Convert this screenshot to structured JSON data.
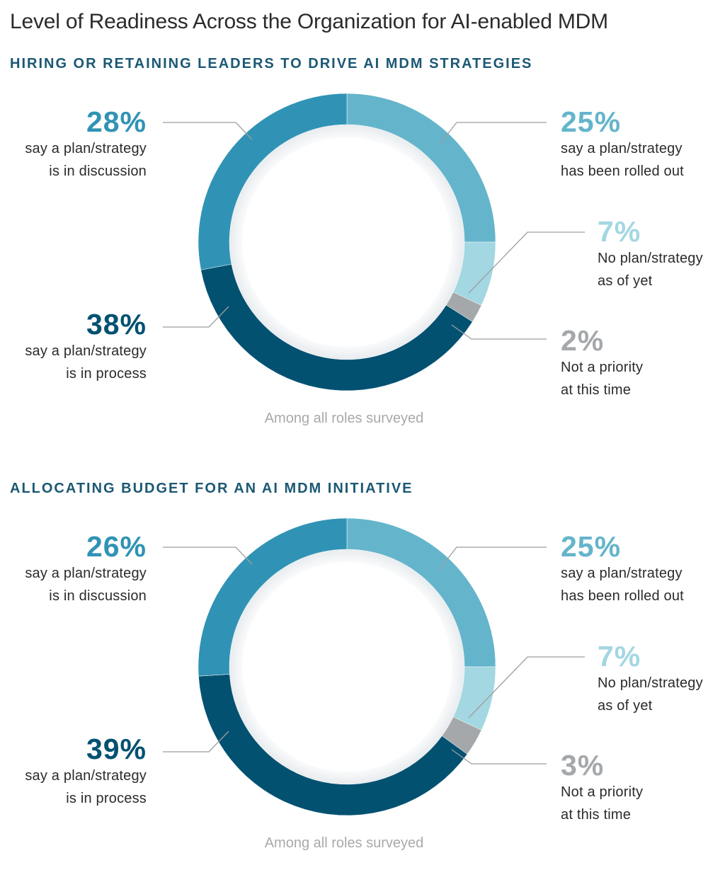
{
  "title": "Level of Readiness Across the Organization for AI-enabled MDM",
  "colors": {
    "discussion": "#3093b5",
    "rolled_out": "#64b5cb",
    "no_plan": "#a3d7e2",
    "not_priority": "#a5a8ab",
    "in_process": "#035171",
    "title": "#1b5874",
    "leader_line": "#9e9e9e"
  },
  "chart_data": [
    {
      "type": "pie",
      "title": "HIRING OR RETAINING LEADERS TO DRIVE AI MDM STRATEGIES",
      "footnote": "Among all roles surveyed",
      "slices": [
        {
          "key": "rolled_out",
          "value": 25,
          "label": "25%",
          "line1": "say a plan/strategy",
          "line2": "has been rolled out"
        },
        {
          "key": "no_plan",
          "value": 7,
          "label": "7%",
          "line1": "No plan/strategy",
          "line2": "as of yet"
        },
        {
          "key": "not_priority",
          "value": 2,
          "label": "2%",
          "line1": "Not a priority",
          "line2": "at this time"
        },
        {
          "key": "in_process",
          "value": 38,
          "label": "38%",
          "line1": "say a plan/strategy",
          "line2": "is in process"
        },
        {
          "key": "discussion",
          "value": 28,
          "label": "28%",
          "line1": "say a plan/strategy",
          "line2": "is in discussion"
        }
      ]
    },
    {
      "type": "pie",
      "title": "ALLOCATING BUDGET FOR AN AI MDM INITIATIVE",
      "footnote": "Among all roles surveyed",
      "slices": [
        {
          "key": "rolled_out",
          "value": 25,
          "label": "25%",
          "line1": "say a plan/strategy",
          "line2": "has been rolled out"
        },
        {
          "key": "no_plan",
          "value": 7,
          "label": "7%",
          "line1": "No plan/strategy",
          "line2": "as of yet"
        },
        {
          "key": "not_priority",
          "value": 3,
          "label": "3%",
          "line1": "Not a priority",
          "line2": "at this time"
        },
        {
          "key": "in_process",
          "value": 39,
          "label": "39%",
          "line1": "say a plan/strategy",
          "line2": "is in process"
        },
        {
          "key": "discussion",
          "value": 26,
          "label": "26%",
          "line1": "say a plan/strategy",
          "line2": "is in discussion"
        }
      ]
    }
  ]
}
